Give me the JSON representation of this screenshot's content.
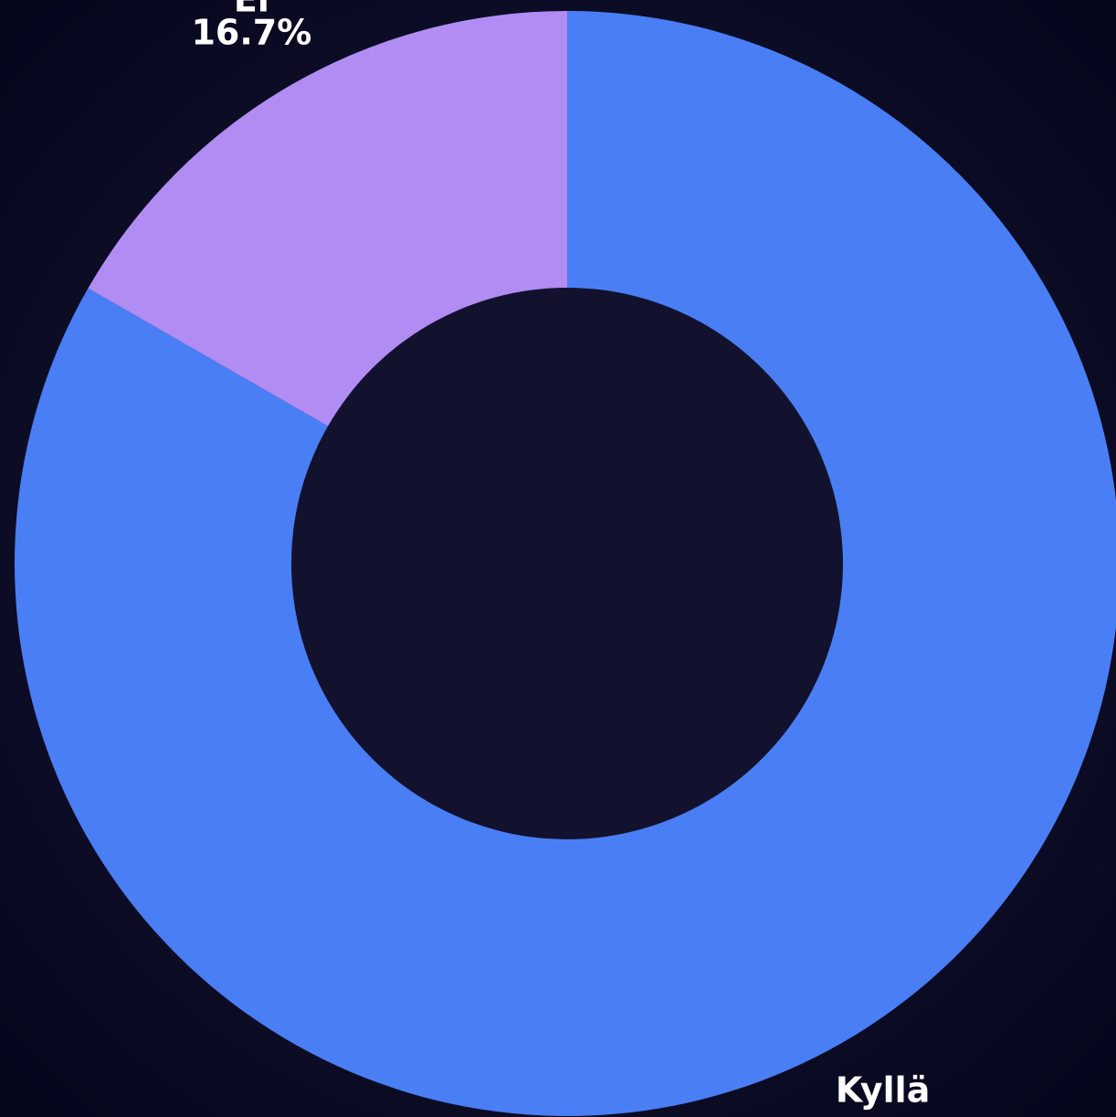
{
  "chart_data": {
    "type": "donut",
    "categories": [
      "Kyllä",
      "Ei"
    ],
    "values": [
      83.3,
      16.7
    ],
    "value_labels": [
      null,
      "16.7%"
    ],
    "colors": [
      "#4a7ef5",
      "#b08cf3"
    ]
  }
}
